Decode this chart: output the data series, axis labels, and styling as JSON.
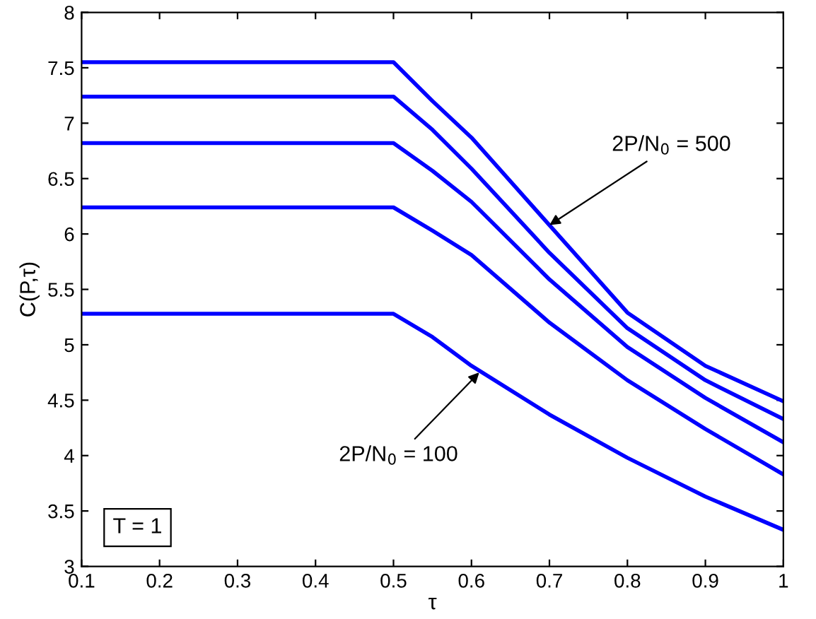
{
  "chart_data": {
    "type": "line",
    "xlabel": "τ",
    "ylabel": "C(P,τ)",
    "x": [
      0.1,
      0.5,
      0.55,
      0.6,
      0.7,
      0.8,
      0.9,
      1.0
    ],
    "series": [
      {
        "color": "#0000ff",
        "values": [
          7.55,
          7.55,
          7.2,
          6.87,
          6.08,
          5.29,
          4.81,
          4.49
        ]
      },
      {
        "color": "#0000ff",
        "values": [
          7.24,
          7.24,
          6.94,
          6.59,
          5.83,
          5.15,
          4.68,
          4.33
        ]
      },
      {
        "color": "#0000ff",
        "values": [
          6.82,
          6.82,
          6.57,
          6.29,
          5.59,
          4.98,
          4.52,
          4.12
        ]
      },
      {
        "color": "#0000ff",
        "values": [
          6.24,
          6.24,
          6.03,
          5.81,
          5.2,
          4.68,
          4.24,
          3.83
        ]
      },
      {
        "color": "#0000ff",
        "values": [
          5.28,
          5.28,
          5.07,
          4.81,
          4.37,
          3.98,
          3.63,
          3.33
        ]
      }
    ],
    "annotations": [
      {
        "text": "2P/N$_{0}$ = 500",
        "x": 0.7,
        "y": 6.08
      },
      {
        "text": "2P/N$_{0}$ = 100",
        "x": 0.61,
        "y": 4.75
      },
      "T = 1"
    ],
    "xlim": [
      0.1,
      1
    ],
    "ylim": [
      3,
      8
    ],
    "xticks": [
      0.1,
      0.2,
      0.3,
      0.4,
      0.5,
      0.6,
      0.7,
      0.8,
      0.9,
      1
    ],
    "yticks": [
      3,
      3.5,
      4,
      4.5,
      5,
      5.5,
      6,
      6.5,
      7,
      7.5,
      8
    ],
    "grid": false,
    "legend": false,
    "marker": "none",
    "line_style": "solid"
  }
}
